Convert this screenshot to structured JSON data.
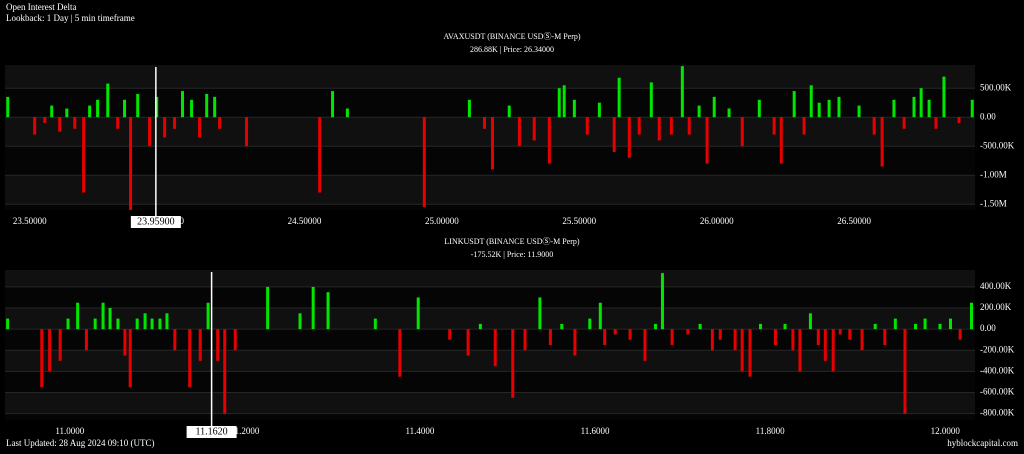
{
  "header": {
    "title": "Open Interest Delta",
    "lookback": "Lookback: 1 Day | 5 min timeframe"
  },
  "footer": {
    "updated": "Last Updated: 28 Aug 2024 09:10 (UTC)",
    "site": "hyblockcapital.com"
  },
  "chart_data": [
    {
      "type": "bar",
      "title": "AVAXUSDT (BINANCE USDⓈ-M Perp)",
      "subtitle": "286.88K | Price: 26.34000",
      "positive_color": "#00e600",
      "negative_color": "#e60000",
      "grid": true,
      "xlim": [
        23.41,
        26.94
      ],
      "ylim": [
        -1600000,
        900000
      ],
      "xticks": [
        {
          "value": 23.5,
          "label": "23.50000"
        },
        {
          "value": 24,
          "label": "24.00000"
        },
        {
          "value": 24.5,
          "label": "24.50000"
        },
        {
          "value": 25,
          "label": "25.00000"
        },
        {
          "value": 25.5,
          "label": "25.50000"
        },
        {
          "value": 26,
          "label": "26.00000"
        },
        {
          "value": 26.5,
          "label": "26.50000"
        }
      ],
      "yticks": [
        {
          "value": 500000,
          "label": "500.00K"
        },
        {
          "value": 0,
          "label": "0.00"
        },
        {
          "value": -500000,
          "label": "-500.00K"
        },
        {
          "value": -1000000,
          "label": "-1.00M"
        },
        {
          "value": -1500000,
          "label": "-1.50M"
        }
      ],
      "crosshair": {
        "value": 23.959,
        "label": "23.95900"
      },
      "x": [
        23.42,
        23.518,
        23.555,
        23.58,
        23.609,
        23.635,
        23.664,
        23.696,
        23.718,
        23.747,
        23.784,
        23.82,
        23.845,
        23.867,
        23.893,
        23.936,
        23.962,
        23.991,
        24.027,
        24.056,
        24.089,
        24.118,
        24.144,
        24.173,
        24.191,
        24.289,
        24.555,
        24.602,
        24.656,
        24.936,
        25.1,
        25.155,
        25.184,
        25.245,
        25.282,
        25.336,
        25.391,
        25.427,
        25.445,
        25.482,
        25.529,
        25.573,
        25.627,
        25.645,
        25.682,
        25.718,
        25.762,
        25.791,
        25.835,
        25.875,
        25.9,
        25.936,
        25.965,
        25.991,
        26.045,
        26.093,
        26.155,
        26.209,
        26.235,
        26.282,
        26.318,
        26.344,
        26.373,
        26.409,
        26.445,
        26.518,
        26.573,
        26.602,
        26.645,
        26.682,
        26.718,
        26.744,
        26.773,
        26.798,
        26.827,
        26.882,
        26.93
      ],
      "values": [
        350000,
        -300000,
        -100000,
        200000,
        -250000,
        150000,
        -200000,
        -1300000,
        200000,
        300000,
        580000,
        -200000,
        300000,
        -1600000,
        400000,
        -500000,
        350000,
        -350000,
        -200000,
        450000,
        300000,
        -350000,
        400000,
        350000,
        -200000,
        -500000,
        -1300000,
        450000,
        150000,
        -1550000,
        300000,
        -200000,
        -900000,
        200000,
        -500000,
        -400000,
        -800000,
        500000,
        550000,
        300000,
        -300000,
        250000,
        -600000,
        680000,
        -700000,
        -300000,
        600000,
        -400000,
        -300000,
        880000,
        -300000,
        200000,
        -800000,
        350000,
        150000,
        -500000,
        300000,
        -300000,
        -800000,
        450000,
        -300000,
        550000,
        250000,
        300000,
        350000,
        200000,
        -300000,
        -850000,
        300000,
        -200000,
        350000,
        500000,
        300000,
        -200000,
        700000,
        -100000,
        300000
      ]
    },
    {
      "type": "bar",
      "title": "LINKUSDT (BINANCE USDⓈ-M Perp)",
      "subtitle": "-175.52K | Price: 11.9000",
      "positive_color": "#00e600",
      "negative_color": "#e60000",
      "grid": true,
      "xlim": [
        10.926,
        12.034
      ],
      "ylim": [
        -860000,
        560000
      ],
      "xticks": [
        {
          "value": 11,
          "label": "11.0000"
        },
        {
          "value": 11.2,
          "label": "11.2000"
        },
        {
          "value": 11.4,
          "label": "11.4000"
        },
        {
          "value": 11.6,
          "label": "11.6000"
        },
        {
          "value": 11.8,
          "label": "11.8000"
        },
        {
          "value": 12,
          "label": "12.0000"
        }
      ],
      "yticks": [
        {
          "value": 400000,
          "label": "400.00K"
        },
        {
          "value": 200000,
          "label": "200.00K"
        },
        {
          "value": 0,
          "label": "0.00"
        },
        {
          "value": -200000,
          "label": "-200.00K"
        },
        {
          "value": -400000,
          "label": "-400.00K"
        },
        {
          "value": -600000,
          "label": "-600.00K"
        },
        {
          "value": -800000,
          "label": "-800.00K"
        }
      ],
      "crosshair": {
        "value": 11.162,
        "label": "11.1620"
      },
      "x": [
        10.929,
        10.968,
        10.977,
        10.989,
        10.998,
        11.009,
        11.019,
        11.029,
        11.038,
        11.046,
        11.055,
        11.063,
        11.069,
        11.077,
        11.086,
        11.094,
        11.103,
        11.111,
        11.12,
        11.137,
        11.149,
        11.158,
        11.169,
        11.177,
        11.189,
        11.226,
        11.263,
        11.278,
        11.295,
        11.349,
        11.377,
        11.398,
        11.434,
        11.455,
        11.469,
        11.486,
        11.506,
        11.52,
        11.537,
        11.549,
        11.562,
        11.577,
        11.594,
        11.606,
        11.611,
        11.623,
        11.64,
        11.657,
        11.669,
        11.677,
        11.688,
        11.706,
        11.72,
        11.734,
        11.743,
        11.76,
        11.768,
        11.777,
        11.789,
        11.806,
        11.817,
        11.826,
        11.834,
        11.846,
        11.855,
        11.863,
        11.872,
        11.88,
        11.891,
        11.905,
        11.92,
        11.931,
        11.943,
        11.954,
        11.966,
        11.977,
        11.994,
        12.006,
        12.017,
        12.03
      ],
      "values": [
        100000,
        -550000,
        -400000,
        -300000,
        100000,
        250000,
        -200000,
        100000,
        250000,
        200000,
        100000,
        -250000,
        -550000,
        100000,
        150000,
        100000,
        100000,
        150000,
        -200000,
        -550000,
        -300000,
        250000,
        -300000,
        -800000,
        -200000,
        400000,
        150000,
        400000,
        350000,
        100000,
        -450000,
        300000,
        -100000,
        -250000,
        50000,
        -350000,
        -650000,
        -200000,
        300000,
        -150000,
        50000,
        -250000,
        100000,
        250000,
        -150000,
        -50000,
        -100000,
        -300000,
        50000,
        530000,
        -150000,
        -50000,
        50000,
        -200000,
        -100000,
        -200000,
        -400000,
        -450000,
        50000,
        -150000,
        50000,
        -200000,
        -400000,
        150000,
        -150000,
        -300000,
        -400000,
        -50000,
        -100000,
        -200000,
        50000,
        -150000,
        100000,
        -800000,
        50000,
        100000,
        50000,
        100000,
        -100000,
        250000
      ]
    }
  ]
}
